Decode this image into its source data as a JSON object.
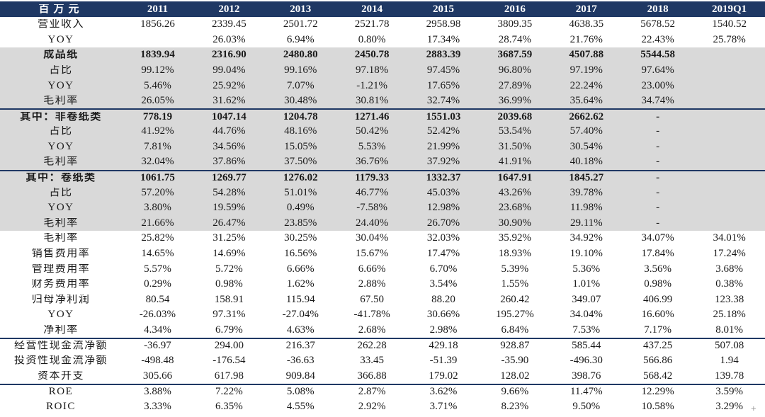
{
  "header": {
    "unit_label": "百万元",
    "years": [
      "2011",
      "2012",
      "2013",
      "2014",
      "2015",
      "2016",
      "2017",
      "2018",
      "2019Q1"
    ]
  },
  "colors": {
    "header_bg": "#1f3864",
    "band_bg": "#d9d9d9",
    "rule": "#1f3864",
    "text": "#1a1a1a",
    "header_text": "#ffffff"
  },
  "rows": [
    {
      "label": "营业收入",
      "band": "white",
      "bold": false,
      "rule_above": false,
      "values": [
        "1856.26",
        "2339.45",
        "2501.72",
        "2521.78",
        "2958.98",
        "3809.35",
        "4638.35",
        "5678.52",
        "1540.52"
      ]
    },
    {
      "label": "YOY",
      "band": "white",
      "bold": false,
      "rule_above": false,
      "values": [
        "",
        "26.03%",
        "6.94%",
        "0.80%",
        "17.34%",
        "28.74%",
        "21.76%",
        "22.43%",
        "25.78%"
      ]
    },
    {
      "label": "成品纸",
      "band": "gray",
      "bold": true,
      "rule_above": false,
      "values": [
        "1839.94",
        "2316.90",
        "2480.80",
        "2450.78",
        "2883.39",
        "3687.59",
        "4507.88",
        "5544.58",
        ""
      ]
    },
    {
      "label": "占比",
      "band": "gray",
      "bold": false,
      "rule_above": false,
      "values": [
        "99.12%",
        "99.04%",
        "99.16%",
        "97.18%",
        "97.45%",
        "96.80%",
        "97.19%",
        "97.64%",
        ""
      ]
    },
    {
      "label": "YOY",
      "band": "gray",
      "bold": false,
      "rule_above": false,
      "values": [
        "5.46%",
        "25.92%",
        "7.07%",
        "-1.21%",
        "17.65%",
        "27.89%",
        "22.24%",
        "23.00%",
        ""
      ]
    },
    {
      "label": "毛利率",
      "band": "gray",
      "bold": false,
      "rule_above": false,
      "values": [
        "26.05%",
        "31.62%",
        "30.48%",
        "30.81%",
        "32.74%",
        "36.99%",
        "35.64%",
        "34.74%",
        ""
      ]
    },
    {
      "label": "其中：非卷纸类",
      "band": "gray",
      "bold": true,
      "rule_above": true,
      "values": [
        "778.19",
        "1047.14",
        "1204.78",
        "1271.46",
        "1551.03",
        "2039.68",
        "2662.62",
        "-",
        ""
      ]
    },
    {
      "label": "占比",
      "band": "gray",
      "bold": false,
      "rule_above": false,
      "values": [
        "41.92%",
        "44.76%",
        "48.16%",
        "50.42%",
        "52.42%",
        "53.54%",
        "57.40%",
        "-",
        ""
      ]
    },
    {
      "label": "YOY",
      "band": "gray",
      "bold": false,
      "rule_above": false,
      "values": [
        "7.81%",
        "34.56%",
        "15.05%",
        "5.53%",
        "21.99%",
        "31.50%",
        "30.54%",
        "-",
        ""
      ]
    },
    {
      "label": "毛利率",
      "band": "gray",
      "bold": false,
      "rule_above": false,
      "values": [
        "32.04%",
        "37.86%",
        "37.50%",
        "36.76%",
        "37.92%",
        "41.91%",
        "40.18%",
        "-",
        ""
      ]
    },
    {
      "label": "其中：卷纸类",
      "band": "gray",
      "bold": true,
      "rule_above": true,
      "values": [
        "1061.75",
        "1269.77",
        "1276.02",
        "1179.33",
        "1332.37",
        "1647.91",
        "1845.27",
        "-",
        ""
      ]
    },
    {
      "label": "占比",
      "band": "gray",
      "bold": false,
      "rule_above": false,
      "values": [
        "57.20%",
        "54.28%",
        "51.01%",
        "46.77%",
        "45.03%",
        "43.26%",
        "39.78%",
        "-",
        ""
      ]
    },
    {
      "label": "YOY",
      "band": "gray",
      "bold": false,
      "rule_above": false,
      "values": [
        "3.80%",
        "19.59%",
        "0.49%",
        "-7.58%",
        "12.98%",
        "23.68%",
        "11.98%",
        "-",
        ""
      ]
    },
    {
      "label": "毛利率",
      "band": "gray",
      "bold": false,
      "rule_above": false,
      "values": [
        "21.66%",
        "26.47%",
        "23.85%",
        "24.40%",
        "26.70%",
        "30.90%",
        "29.11%",
        "-",
        ""
      ]
    },
    {
      "label": "毛利率",
      "band": "white",
      "bold": false,
      "rule_above": false,
      "values": [
        "25.82%",
        "31.25%",
        "30.25%",
        "30.04%",
        "32.03%",
        "35.92%",
        "34.92%",
        "34.07%",
        "34.01%"
      ]
    },
    {
      "label": "销售费用率",
      "band": "white",
      "bold": false,
      "rule_above": false,
      "values": [
        "14.65%",
        "14.69%",
        "16.56%",
        "15.67%",
        "17.47%",
        "18.93%",
        "19.10%",
        "17.84%",
        "17.24%"
      ]
    },
    {
      "label": "管理费用率",
      "band": "white",
      "bold": false,
      "rule_above": false,
      "values": [
        "5.57%",
        "5.72%",
        "6.66%",
        "6.66%",
        "6.70%",
        "5.39%",
        "5.36%",
        "3.56%",
        "3.68%"
      ]
    },
    {
      "label": "财务费用率",
      "band": "white",
      "bold": false,
      "rule_above": false,
      "values": [
        "0.29%",
        "0.98%",
        "1.62%",
        "2.88%",
        "3.54%",
        "1.55%",
        "1.01%",
        "0.98%",
        "0.38%"
      ]
    },
    {
      "label": "归母净利润",
      "band": "white",
      "bold": false,
      "rule_above": false,
      "values": [
        "80.54",
        "158.91",
        "115.94",
        "67.50",
        "88.20",
        "260.42",
        "349.07",
        "406.99",
        "123.38"
      ]
    },
    {
      "label": "YOY",
      "band": "white",
      "bold": false,
      "rule_above": false,
      "values": [
        "-26.03%",
        "97.31%",
        "-27.04%",
        "-41.78%",
        "30.66%",
        "195.27%",
        "34.04%",
        "16.60%",
        "25.18%"
      ]
    },
    {
      "label": "净利率",
      "band": "white",
      "bold": false,
      "rule_above": false,
      "values": [
        "4.34%",
        "6.79%",
        "4.63%",
        "2.68%",
        "2.98%",
        "6.84%",
        "7.53%",
        "7.17%",
        "8.01%"
      ]
    },
    {
      "label": "经营性现金流净额",
      "band": "white",
      "bold": false,
      "rule_above": true,
      "values": [
        "-36.97",
        "294.00",
        "216.37",
        "262.28",
        "429.18",
        "928.87",
        "585.44",
        "437.25",
        "507.08"
      ]
    },
    {
      "label": "投资性现金流净额",
      "band": "white",
      "bold": false,
      "rule_above": false,
      "values": [
        "-498.48",
        "-176.54",
        "-36.63",
        "33.45",
        "-51.39",
        "-35.90",
        "-496.30",
        "566.86",
        "1.94"
      ]
    },
    {
      "label": "资本开支",
      "band": "white",
      "bold": false,
      "rule_above": false,
      "values": [
        "305.66",
        "617.98",
        "909.84",
        "366.88",
        "179.02",
        "128.02",
        "398.76",
        "568.42",
        "139.78"
      ]
    },
    {
      "label": "ROE",
      "band": "white",
      "bold": false,
      "rule_above": true,
      "values": [
        "3.88%",
        "7.22%",
        "5.08%",
        "2.87%",
        "3.62%",
        "9.66%",
        "11.47%",
        "12.29%",
        "3.59%"
      ]
    },
    {
      "label": "ROIC",
      "band": "white",
      "bold": false,
      "rule_above": false,
      "values": [
        "3.33%",
        "6.35%",
        "4.55%",
        "2.92%",
        "3.71%",
        "8.23%",
        "9.50%",
        "10.58%",
        "3.29%"
      ]
    }
  ],
  "artifact": {
    "cursor_mark": "+"
  }
}
